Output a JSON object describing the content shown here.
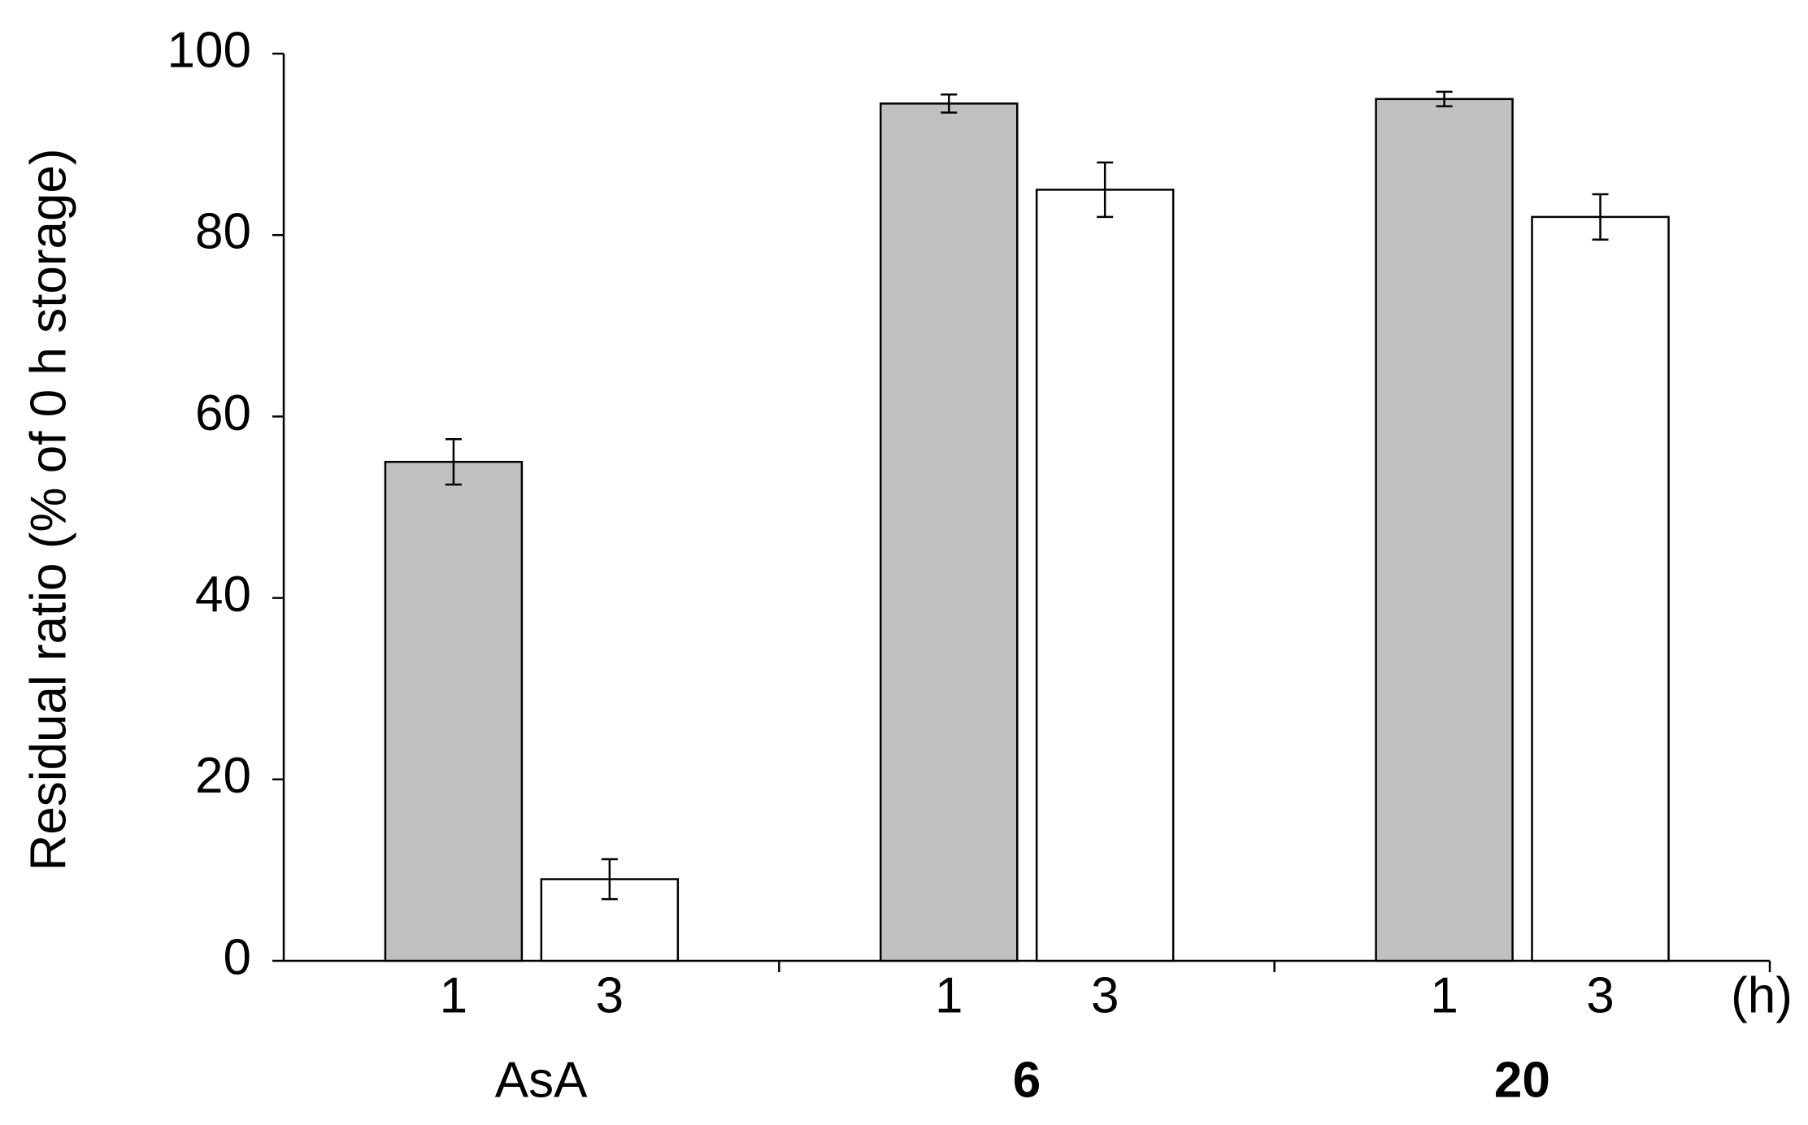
{
  "chart_data": {
    "type": "bar",
    "y_label": "Residual ratio (% of 0 h storage)",
    "x_label": "(h)",
    "categories": [
      "AsA",
      "6",
      "20"
    ],
    "category_bold": [
      false,
      true,
      true
    ],
    "series": [
      {
        "name": "1",
        "color": "#c0c0c0",
        "values": [
          55,
          94.5,
          95
        ],
        "errors": [
          2.5,
          1,
          0.8
        ]
      },
      {
        "name": "3",
        "color": "#ffffff",
        "values": [
          9,
          85,
          82
        ],
        "errors": [
          2.2,
          3,
          2.5
        ]
      }
    ],
    "ylim": [
      0,
      100
    ],
    "yticks": [
      0,
      20,
      40,
      60,
      80,
      100
    ]
  }
}
